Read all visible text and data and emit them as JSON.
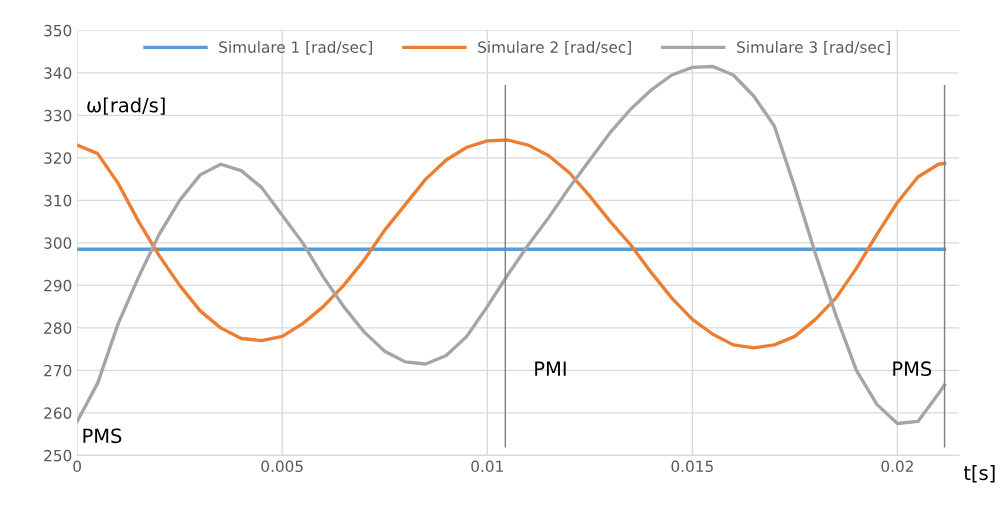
{
  "chart_data": {
    "type": "line",
    "ylabel": "ω[rad/s]",
    "xlabel": "t[s]",
    "xlim": [
      0,
      0.0215
    ],
    "xticks": [
      0,
      0.005,
      0.01,
      0.015,
      0.02
    ],
    "ylim": [
      250,
      350
    ],
    "yticks": [
      250,
      260,
      270,
      280,
      290,
      300,
      310,
      320,
      330,
      340,
      350
    ],
    "grid": true,
    "legend": "top",
    "marker": "none",
    "line_style": "solid",
    "annotations": [
      "PMS"
    ],
    "ref_lines": [
      {
        "axis": "x",
        "value": 0.01044,
        "label": "PMI",
        "color": "#7f7f7f"
      },
      {
        "axis": "x",
        "value": 0.02115,
        "label": "PMS",
        "color": "#7f7f7f"
      }
    ],
    "series": [
      {
        "name": "Simulare 1 [rad/sec]",
        "color": "#5b9bd5",
        "x": [
          0,
          0.02115
        ],
        "values": [
          298.5,
          298.5
        ]
      },
      {
        "name": "Simulare 2 [rad/sec]",
        "color": "#ed7d31",
        "x": [
          0,
          0.0005,
          0.001,
          0.0015,
          0.002,
          0.0025,
          0.003,
          0.0035,
          0.004,
          0.0045,
          0.005,
          0.0055,
          0.006,
          0.0065,
          0.007,
          0.0075,
          0.008,
          0.0085,
          0.009,
          0.0095,
          0.01,
          0.0105,
          0.011,
          0.0115,
          0.012,
          0.0125,
          0.013,
          0.0135,
          0.014,
          0.0145,
          0.015,
          0.0155,
          0.016,
          0.0165,
          0.017,
          0.0175,
          0.018,
          0.0185,
          0.019,
          0.0195,
          0.02,
          0.0205,
          0.021,
          0.02115
        ],
        "values": [
          323,
          321,
          314,
          305,
          297,
          290,
          284,
          280,
          277.5,
          277,
          278,
          281,
          285,
          290,
          296,
          303,
          309,
          315,
          319.5,
          322.5,
          324,
          324.2,
          323,
          320.5,
          316.5,
          311,
          305,
          299.5,
          293,
          287,
          282,
          278.5,
          276,
          275.3,
          276,
          278,
          282,
          287,
          294,
          302,
          309.5,
          315.5,
          318.5,
          318.7
        ]
      },
      {
        "name": "Simulare 3 [rad/sec]",
        "color": "#a5a5a5",
        "x": [
          0,
          0.0005,
          0.001,
          0.0015,
          0.002,
          0.0025,
          0.003,
          0.0035,
          0.004,
          0.0045,
          0.005,
          0.0055,
          0.006,
          0.0065,
          0.007,
          0.0075,
          0.008,
          0.0085,
          0.009,
          0.0095,
          0.01,
          0.0105,
          0.011,
          0.0115,
          0.012,
          0.0125,
          0.013,
          0.0135,
          0.014,
          0.0145,
          0.015,
          0.0155,
          0.016,
          0.0165,
          0.017,
          0.0175,
          0.018,
          0.0185,
          0.019,
          0.0195,
          0.02,
          0.0205,
          0.021,
          0.02115
        ],
        "values": [
          258,
          267,
          281,
          292,
          302,
          310,
          316,
          318.5,
          317,
          313,
          306.5,
          300,
          292,
          285,
          279,
          274.5,
          272,
          271.5,
          273.5,
          278,
          285,
          292.5,
          299.5,
          306,
          313,
          319.5,
          326,
          331.5,
          336,
          339.5,
          341.3,
          341.5,
          339.5,
          334.5,
          327.5,
          313,
          297.5,
          283,
          270,
          262,
          257.5,
          258,
          264.5,
          266.6
        ]
      }
    ]
  }
}
